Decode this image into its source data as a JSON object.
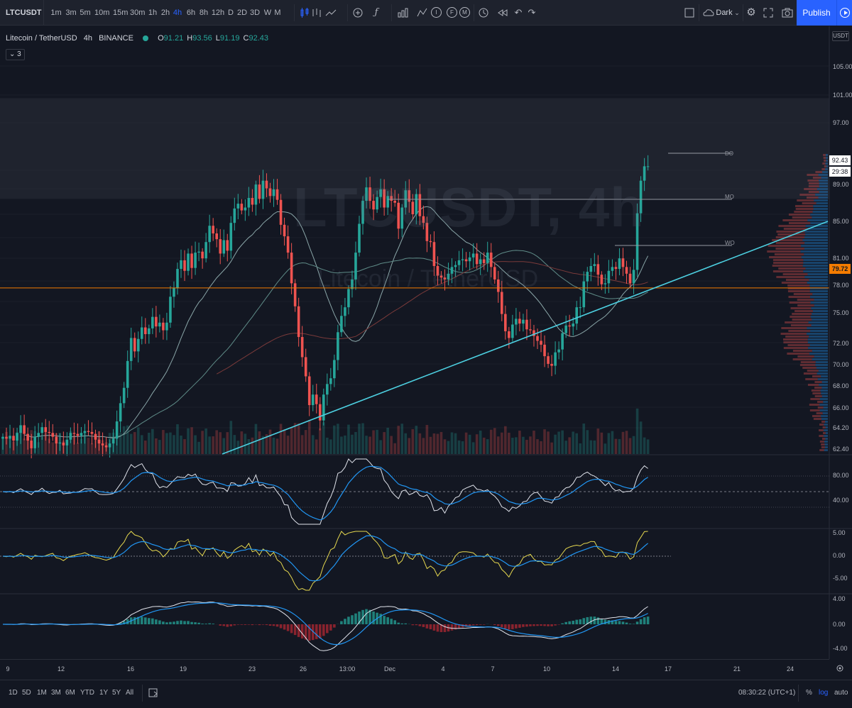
{
  "toolbar": {
    "symbol": "LTCUSDT",
    "intervals": [
      "1m",
      "3m",
      "5m",
      "10m",
      "15m",
      "30m",
      "1h",
      "2h",
      "4h",
      "6h",
      "8h",
      "12h",
      "D",
      "2D",
      "3D",
      "W",
      "M"
    ],
    "active_interval": "4h",
    "theme_label": "Dark",
    "publish_label": "Publish"
  },
  "legend": {
    "pair": "Litecoin / TetherUSD",
    "interval": "4h",
    "exchange": "BINANCE",
    "open_key": "O",
    "open": "91.21",
    "high_key": "H",
    "high": "93.56",
    "low_key": "L",
    "low": "91.19",
    "close_key": "C",
    "close": "92.43",
    "indicators_count": "3"
  },
  "watermark": {
    "symbol": "LTCUSDT, 4h",
    "name": "Litecoin / TetherUSD"
  },
  "price_scale": {
    "currency": "USDT",
    "labels": [
      "105.00",
      "101.00",
      "97.00",
      "89.00",
      "85.00",
      "81.00",
      "78.00",
      "75.00",
      "72.00",
      "70.00",
      "68.00",
      "66.00",
      "64.20",
      "62.40"
    ],
    "last_price": "92.43",
    "countdown": "29:38",
    "horizontal_line_price": "79.72"
  },
  "levels": {
    "dd": "DO",
    "mo": "MO",
    "wo": "WO"
  },
  "rsi_scale": [
    "80.00",
    "40.00"
  ],
  "osc_scale": [
    "5.00",
    "0.00",
    "-5.00"
  ],
  "macd_scale": [
    "4.00",
    "0.00",
    "-4.00"
  ],
  "time_axis": [
    "9",
    "12",
    "16",
    "19",
    "23",
    "26",
    "13:00",
    "Dec",
    "4",
    "7",
    "10",
    "14",
    "17",
    "21",
    "24"
  ],
  "bottom_bar": {
    "ranges": [
      "1D",
      "5D",
      "1M",
      "3M",
      "6M",
      "YTD",
      "1Y",
      "5Y",
      "All"
    ],
    "clock": "08:30:22 (UTC+1)",
    "percent_label": "%",
    "log_label": "log",
    "auto_label": "auto"
  },
  "colors": {
    "up": "#26a69a",
    "down": "#ef5350",
    "trendline": "#4dd0e1",
    "hline": "#f57c00",
    "background": "#131722",
    "accent": "#2962ff"
  },
  "chart_data": {
    "type": "candlestick",
    "title": "Litecoin / TetherUSD, 4h, BINANCE",
    "ylim": [
      62.4,
      107
    ],
    "x_ticks": [
      "9",
      "12",
      "16",
      "19",
      "23",
      "26",
      "13:00",
      "Dec",
      "4",
      "7",
      "10",
      "14",
      "17",
      "21",
      "24"
    ],
    "closes": [
      64.2,
      64,
      64.3,
      63.8,
      64.6,
      65.4,
      64.5,
      63.8,
      63,
      64.2,
      64.6,
      65.2,
      64.7,
      64.6,
      64.2,
      63.5,
      63.6,
      63.3,
      63.9,
      64.6,
      64.5,
      64.3,
      64.6,
      64.8,
      64.7,
      64.5,
      63.9,
      63.5,
      63.3,
      63.1,
      63.5,
      64,
      65.8,
      67.7,
      69.3,
      72.1,
      74.5,
      73.1,
      74.4,
      75.6,
      74.9,
      75.5,
      76.7,
      75.7,
      76.1,
      75.3,
      76.1,
      78.8,
      79.7,
      81.7,
      82.6,
      81.5,
      83.3,
      81.8,
      83.4,
      83.5,
      82.8,
      84.5,
      86.2,
      85.4,
      84.8,
      83.3,
      84.7,
      83.6,
      86.5,
      88,
      88.5,
      87.8,
      88.1,
      89.1,
      88.4,
      90.5,
      89,
      90.9,
      90.1,
      89.3,
      90,
      88.9,
      86.3,
      85.1,
      83.4,
      80.2,
      77.8,
      74.6,
      72.5,
      70.5,
      67.5,
      68.6,
      67.6,
      65.9,
      68.6,
      69.7,
      70.3,
      72.2,
      75.1,
      76.8,
      77.7,
      79.6,
      80.6,
      83.4,
      86.4,
      88.8,
      90.2,
      88.8,
      87.9,
      89.2,
      90,
      88.1,
      89.3,
      88.8,
      88.6,
      85.9,
      88.1,
      89.9,
      88.7,
      87.4,
      89.5,
      87.2,
      86.5,
      84.6,
      84.5,
      82,
      81,
      80.8,
      80.6,
      81.2,
      81.9,
      82.1,
      82.6,
      82.7,
      82.5,
      82.9,
      83.3,
      82.2,
      82.7,
      82.3,
      83.4,
      81.9,
      80.6,
      79.3,
      77,
      75.2,
      74.5,
      75.9,
      76.5,
      76,
      76.4,
      75.4,
      75.3,
      74.7,
      74.2,
      73.8,
      72.6,
      71.8,
      71.6,
      73,
      73.3,
      75,
      75.8,
      75.7,
      76,
      77.7,
      77.7,
      80.4,
      81.4,
      82,
      82.2,
      81.1,
      80.1,
      80.2,
      81.5,
      81.9,
      81.7,
      82.8,
      81.9,
      81.2,
      80.2,
      81.6,
      87.5,
      90.9,
      92.4,
      92.4
    ],
    "horizontal_lines": [
      79.72
    ],
    "levels": {
      "DO": 92.43,
      "MO": 87.6,
      "WO": 82.2
    }
  }
}
